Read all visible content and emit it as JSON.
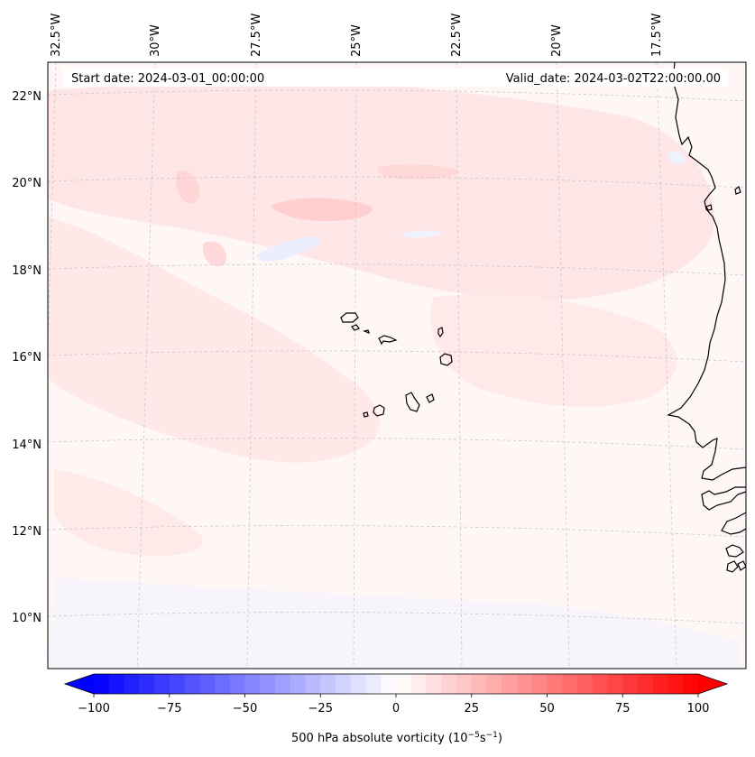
{
  "map": {
    "header": {
      "start_date": "Start date: 2024-03-01_00:00:00",
      "valid_date": "Valid_date: 2024-03-02T22:00:00.00"
    },
    "lon_labels": [
      "32.5°W",
      "30°W",
      "27.5°W",
      "25°W",
      "22.5°W",
      "20°W",
      "17.5°W"
    ],
    "lat_labels": [
      "22°N",
      "20°N",
      "18°N",
      "16°N",
      "14°N",
      "12°N",
      "10°N"
    ],
    "features": [
      "cape-verde-islands",
      "west-africa-coastline",
      "vorticity-field"
    ]
  },
  "colorbar": {
    "ticks": [
      "−100",
      "−75",
      "−50",
      "−25",
      "0",
      "25",
      "50",
      "75",
      "100"
    ],
    "label_main": "500 hPa absolute vorticity (10",
    "label_exp1": "−5",
    "label_mid": "s",
    "label_exp2": "−1",
    "label_end": ")",
    "min": -100,
    "max": 100,
    "levels": 40,
    "colors": {
      "neg": "#0000ff",
      "zero": "#ffffff",
      "pos": "#ff0000"
    }
  },
  "colors": {
    "coast": "#000000",
    "grid": "#c8c8c8",
    "field_base": "#fff6f6",
    "field_pos": "#ffe3e3",
    "field_pos_strong": "#ffcccc",
    "field_neg": "#eef0ff"
  }
}
